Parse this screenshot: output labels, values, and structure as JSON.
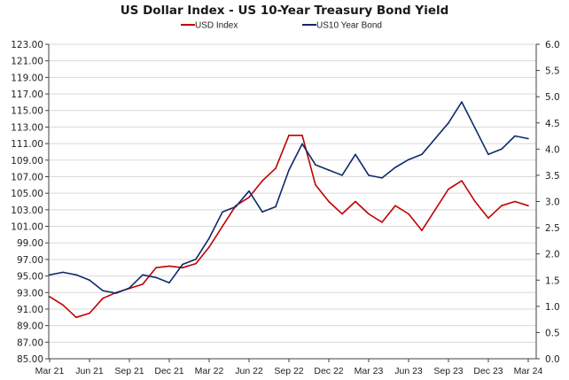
{
  "chart_data": {
    "type": "line",
    "title": "US Dollar Index - US 10-Year Treasury Bond Yield",
    "legend_position": "top",
    "grid": true,
    "x": [
      "Mar 21",
      "Apr 21",
      "May 21",
      "Jun 21",
      "Jul 21",
      "Aug 21",
      "Sep 21",
      "Oct 21",
      "Nov 21",
      "Dec 21",
      "Jan 22",
      "Feb 22",
      "Mar 22",
      "Apr 22",
      "May 22",
      "Jun 22",
      "Jul 22",
      "Aug 22",
      "Sep 22",
      "Oct 22",
      "Nov 22",
      "Dec 22",
      "Jan 23",
      "Feb 23",
      "Mar 23",
      "Apr 23",
      "May 23",
      "Jun 23",
      "Jul 23",
      "Aug 23",
      "Sep 23",
      "Oct 23",
      "Nov 23",
      "Dec 23",
      "Jan 24",
      "Feb 24",
      "Mar 24"
    ],
    "x_tick_labels": [
      "Mar 21",
      "Jun 21",
      "Sep 21",
      "Dec 21",
      "Mar 22",
      "Jun 22",
      "Sep 22",
      "Dec 22",
      "Mar 23",
      "Jun 23",
      "Sep 23",
      "Dec 23",
      "Mar 24"
    ],
    "y_left": {
      "range": [
        85,
        123
      ],
      "tick_labels": [
        "85.00",
        "87.00",
        "89.00",
        "91.00",
        "93.00",
        "95.00",
        "97.00",
        "99.00",
        "101.00",
        "103.00",
        "105.00",
        "107.00",
        "109.00",
        "111.00",
        "113.00",
        "115.00",
        "117.00",
        "119.00",
        "121.00",
        "123.00"
      ]
    },
    "y_right": {
      "range": [
        0,
        6
      ],
      "tick_labels": [
        "0.0",
        "0.5",
        "1.0",
        "1.5",
        "2.0",
        "2.5",
        "3.0",
        "3.5",
        "4.0",
        "4.5",
        "5.0",
        "5.5",
        "6.0"
      ]
    },
    "series": [
      {
        "name": "USD Index",
        "axis": "left",
        "color": "#c00000",
        "values": [
          92.5,
          91.5,
          90.0,
          90.5,
          92.3,
          93.0,
          93.5,
          94.0,
          96.0,
          96.2,
          96.0,
          96.5,
          98.5,
          101.0,
          103.5,
          104.5,
          106.5,
          108.0,
          112.0,
          112.0,
          106.0,
          104.0,
          102.5,
          104.0,
          102.5,
          101.5,
          103.5,
          102.5,
          100.5,
          103.0,
          105.5,
          106.5,
          104.0,
          102.0,
          103.5,
          104.0,
          103.5
        ]
      },
      {
        "name": "US10 Year Bond",
        "axis": "right",
        "color": "#0d2a6b",
        "values": [
          1.6,
          1.65,
          1.6,
          1.5,
          1.3,
          1.25,
          1.35,
          1.6,
          1.55,
          1.45,
          1.8,
          1.9,
          2.3,
          2.8,
          2.9,
          3.2,
          2.8,
          2.9,
          3.6,
          4.1,
          3.7,
          3.6,
          3.5,
          3.9,
          3.5,
          3.45,
          3.65,
          3.8,
          3.9,
          4.2,
          4.5,
          4.9,
          4.4,
          3.9,
          4.0,
          4.25,
          4.2
        ]
      }
    ]
  }
}
